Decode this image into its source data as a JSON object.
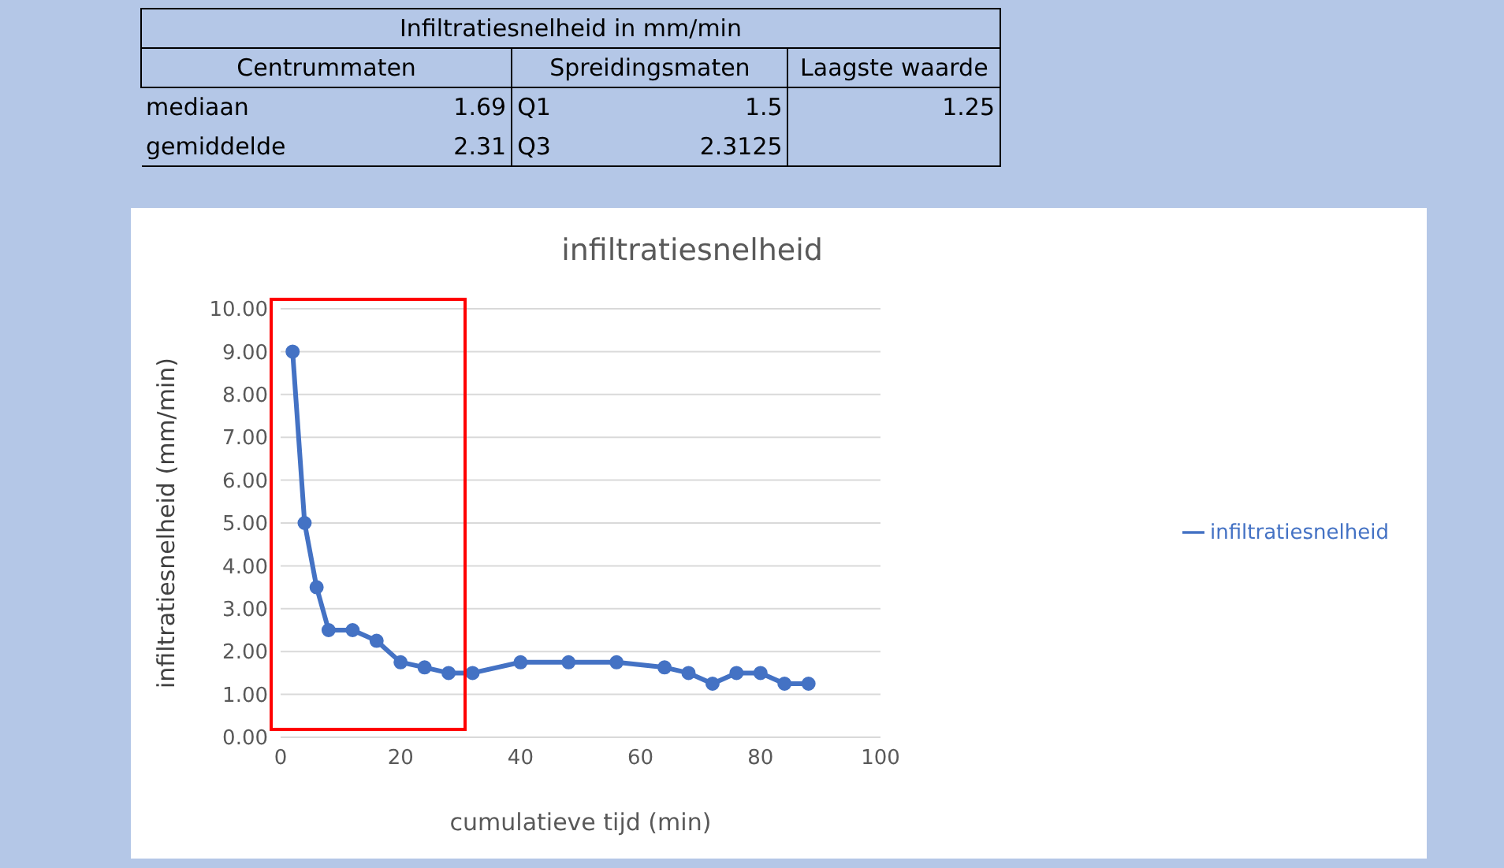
{
  "chart_data": {
    "type": "line",
    "title": "infiltratiesnelheid",
    "xlabel": "cumulatieve tijd (min)",
    "ylabel": "infiltratiesnelheid (mm/min)",
    "annotations": [
      "Infiltratiesnelheid in mm/min",
      "Centrummaten",
      "Spreidingsmaten",
      "Laagste waarde",
      "mediaan",
      "1.69",
      "Q1",
      "1.5",
      "1.25",
      "gemiddelde",
      "2.31",
      "Q3",
      "2.3125"
    ],
    "x": [
      2,
      4,
      6,
      8,
      12,
      16,
      20,
      24,
      28,
      32,
      40,
      48,
      56,
      64,
      68,
      72,
      76,
      80,
      84,
      88
    ],
    "series": [
      {
        "name": "infiltratiesnelheid",
        "color": "#4472c4",
        "values": [
          9,
          5,
          3.5,
          2.5,
          2.5,
          2.25,
          1.75,
          1.63,
          1.5,
          1.5,
          1.75,
          1.75,
          1.75,
          1.63,
          1.5,
          1.25,
          1.5,
          1.5,
          1.25,
          1.25
        ]
      }
    ],
    "xlim": [
      0,
      100
    ],
    "xticks": [
      0,
      20,
      40,
      60,
      80,
      100
    ],
    "ylim": [
      0,
      10
    ],
    "yticks": [
      {
        "value": 0,
        "label": "0.00"
      },
      {
        "value": 1,
        "label": "1.00"
      },
      {
        "value": 2,
        "label": "2.00"
      },
      {
        "value": 3,
        "label": "3.00"
      },
      {
        "value": 4,
        "label": "4.00"
      },
      {
        "value": 5,
        "label": "5.00"
      },
      {
        "value": 6,
        "label": "6.00"
      },
      {
        "value": 7,
        "label": "7.00"
      },
      {
        "value": 8,
        "label": "8.00"
      },
      {
        "value": 9,
        "label": "9.00"
      },
      {
        "value": 10,
        "label": "10.00"
      }
    ],
    "grid": "y",
    "legend": "right",
    "marker": "circle",
    "line_style": "solid"
  }
}
